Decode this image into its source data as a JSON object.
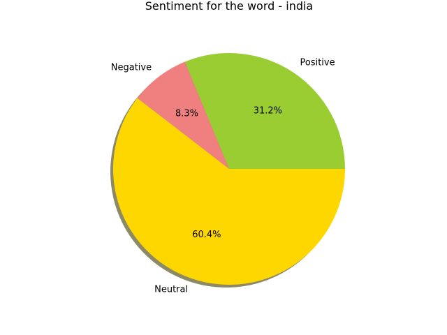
{
  "chart_data": {
    "type": "pie",
    "title": "Sentiment for the word - india",
    "slices": [
      {
        "label": "Positive",
        "value": 31.2,
        "pct_label": "31.2%",
        "color": "#9acd32"
      },
      {
        "label": "Negative",
        "value": 8.3,
        "pct_label": "8.3%",
        "color": "#f08080"
      },
      {
        "label": "Neutral",
        "value": 60.4,
        "pct_label": "60.4%",
        "color": "#ffd700"
      }
    ],
    "start_angle": 0,
    "direction": "counterclockwise",
    "shadow": true,
    "shadow_color": "#8c8966"
  }
}
